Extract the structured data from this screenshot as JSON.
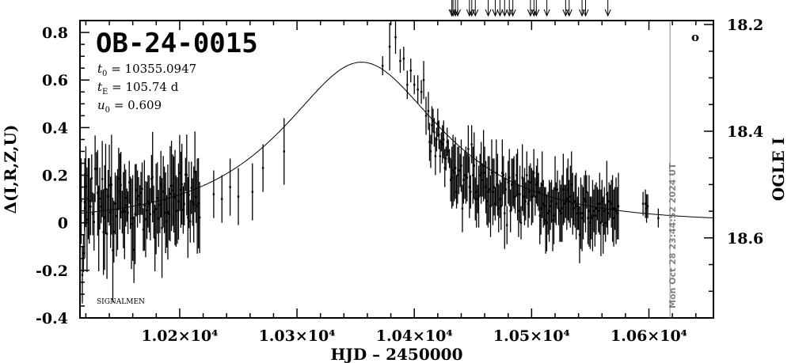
{
  "chart_data": {
    "type": "scatter",
    "title": "OB-24-0015",
    "xlabel": "HJD – 2450000",
    "ylabel": "Δ(I,R,Z,U)",
    "y2label": "OGLE I",
    "xlim": [
      10115,
      10655
    ],
    "ylim": [
      -0.4,
      0.85
    ],
    "y2lim": [
      18.2,
      18.75
    ],
    "x_ticks": [
      {
        "value": 10200,
        "label": "1.02×10⁴"
      },
      {
        "value": 10300,
        "label": "1.03×10⁴"
      },
      {
        "value": 10400,
        "label": "1.04×10⁴"
      },
      {
        "value": 10500,
        "label": "1.05×10⁴"
      },
      {
        "value": 10600,
        "label": "1.06×10⁴"
      }
    ],
    "y_ticks": [
      {
        "value": 0.8,
        "label": "0.8"
      },
      {
        "value": 0.6,
        "label": "0.6"
      },
      {
        "value": 0.4,
        "label": "0.4"
      },
      {
        "value": 0.2,
        "label": "0.2"
      },
      {
        "value": 0,
        "label": "0"
      },
      {
        "value": -0.2,
        "label": "-0.2"
      },
      {
        "value": -0.4,
        "label": "-0.4"
      }
    ],
    "y2_ticks": [
      {
        "value": 18.2,
        "label": "18.2"
      },
      {
        "value": 18.4,
        "label": "18.4"
      },
      {
        "value": 18.6,
        "label": "18.6"
      }
    ],
    "params": {
      "t0_name": "t",
      "t0_sub": "0",
      "t0_value": "= 10355.0947",
      "tE_name": "t",
      "tE_sub": "E",
      "tE_value": "= 105.74 d",
      "u0_name": "u",
      "u0_sub": "0",
      "u0_value": "= 0.609"
    },
    "model": {
      "t0": 10355.0947,
      "tE": 105.74,
      "u0": 0.609,
      "baseline_offset": 0.0
    },
    "survey_label": "SIGNALMEN",
    "timestamp": "Mon Oct 28 23:44:52 2024 UT",
    "marker": "o",
    "now_line_x": 10618,
    "arrow_epochs": [
      10432,
      10433,
      10435,
      10437,
      10447,
      10449,
      10452,
      10463,
      10469,
      10473,
      10477,
      10481,
      10484,
      10499,
      10502,
      10504,
      10513,
      10529,
      10532,
      10543,
      10546,
      10565
    ],
    "data_points": [
      [
        10115.2,
        0.083,
        0.19
      ],
      [
        10116.0,
        0.091,
        0.18
      ],
      [
        10117.0,
        -0.219,
        0.12
      ],
      [
        10118.0,
        -0.128,
        0.08
      ],
      [
        10118.9,
        0.087,
        0.12
      ],
      [
        10119.1,
        0.061,
        0.21
      ],
      [
        10120.0,
        0.152,
        0.17
      ],
      [
        10121.0,
        0.013,
        0.22
      ],
      [
        10122.1,
        0.101,
        0.17
      ],
      [
        10122.9,
        0.092,
        0.18
      ],
      [
        10124.0,
        0.068,
        0.12
      ],
      [
        10125.0,
        0.187,
        0.1
      ],
      [
        10125.9,
        0.037,
        0.09
      ],
      [
        10127.0,
        0.003,
        0.12
      ],
      [
        10127.9,
        0.227,
        0.14
      ],
      [
        10129.0,
        0.227,
        0.07
      ],
      [
        10130.1,
        0.126,
        0.18
      ],
      [
        10131.0,
        -0.024,
        0.18
      ],
      [
        10131.9,
        0.102,
        0.13
      ],
      [
        10133.1,
        0.068,
        0.07
      ],
      [
        10134.0,
        0.184,
        0.16
      ],
      [
        10135.0,
        -0.039,
        0.18
      ],
      [
        10136.0,
        0.022,
        0.22
      ],
      [
        10136.9,
        0.142,
        0.19
      ],
      [
        10138.0,
        -0.046,
        0.19
      ],
      [
        10139.0,
        0.112,
        0.11
      ],
      [
        10140.0,
        0.158,
        0.17
      ],
      [
        10141.1,
        0.044,
        0.15
      ],
      [
        10141.9,
        0.16,
        0.21
      ],
      [
        10143.0,
        -0.115,
        0.22
      ],
      [
        10143.9,
        -0.038,
        0.13
      ],
      [
        10145.0,
        0.081,
        0.13
      ],
      [
        10146.1,
        0.028,
        0.17
      ],
      [
        10147.1,
        0.056,
        0.17
      ],
      [
        10148.0,
        0.185,
        0.13
      ],
      [
        10149.0,
        0.132,
        0.16
      ],
      [
        10149.9,
        0.158,
        0.14
      ],
      [
        10151.0,
        0.045,
        0.09
      ],
      [
        10152.0,
        0.053,
        0.16
      ],
      [
        10153.0,
        0.047,
        0.2
      ],
      [
        10154.0,
        0.104,
        0.12
      ],
      [
        10155.0,
        0.074,
        0.07
      ],
      [
        10155.9,
        0.042,
        0.09
      ],
      [
        10157.0,
        0.17,
        0.09
      ],
      [
        10158.0,
        0.084,
        0.11
      ],
      [
        10158.9,
        -0.005,
        0.19
      ],
      [
        10160.0,
        0.02,
        0.18
      ],
      [
        10161.0,
        -0.113,
        0.14
      ],
      [
        10162.0,
        0.036,
        0.21
      ],
      [
        10163.0,
        0.137,
        0.11
      ],
      [
        10164.0,
        0.1,
        0.12
      ],
      [
        10165.0,
        0.112,
        0.08
      ],
      [
        10166.1,
        0.078,
        0.08
      ],
      [
        10167.0,
        0.124,
        0.09
      ],
      [
        10168.0,
        0.143,
        0.11
      ],
      [
        10169.0,
        -0.029,
        0.09
      ],
      [
        10169.9,
        0.073,
        0.19
      ],
      [
        10171.0,
        0.015,
        0.16
      ],
      [
        10172.1,
        0.052,
        0.12
      ],
      [
        10173.0,
        0.09,
        0.11
      ],
      [
        10174.0,
        0.079,
        0.12
      ],
      [
        10175.0,
        0.036,
        0.11
      ],
      [
        10176.0,
        0.185,
        0.1
      ],
      [
        10176.9,
        0.192,
        0.19
      ],
      [
        10177.9,
        0.046,
        0.11
      ],
      [
        10178.9,
        -0.064,
        0.14
      ],
      [
        10179.9,
        0.058,
        0.19
      ],
      [
        10181.0,
        0.104,
        0.15
      ],
      [
        10182.0,
        0.018,
        0.12
      ],
      [
        10183.1,
        0.076,
        0.12
      ],
      [
        10184.0,
        0.162,
        0.14
      ],
      [
        10184.9,
        -0.022,
        0.21
      ],
      [
        10186.0,
        0.131,
        0.15
      ],
      [
        10187.0,
        0.096,
        0.14
      ],
      [
        10188.0,
        0.042,
        0.17
      ],
      [
        10189.0,
        0.006,
        0.11
      ],
      [
        10189.9,
        0.045,
        0.2
      ],
      [
        10191.0,
        0.037,
        0.11
      ],
      [
        10191.9,
        0.122,
        0.2
      ],
      [
        10193.0,
        0.155,
        0.19
      ],
      [
        10194.1,
        0.137,
        0.15
      ],
      [
        10195.0,
        0.119,
        0.16
      ],
      [
        10196.0,
        0.106,
        0.2
      ],
      [
        10196.9,
        0.049,
        0.15
      ],
      [
        10198.0,
        0.051,
        0.14
      ],
      [
        10199.0,
        0.089,
        0.16
      ],
      [
        10200.0,
        0.209,
        0.16
      ],
      [
        10201.0,
        0.139,
        0.16
      ],
      [
        10201.9,
        0.162,
        0.17
      ],
      [
        10203.0,
        0.054,
        0.1
      ],
      [
        10203.9,
        0.079,
        0.09
      ],
      [
        10205.0,
        0.203,
        0.07
      ],
      [
        10206.0,
        0.201,
        0.17
      ],
      [
        10207.0,
        0.022,
        0.17
      ],
      [
        10207.9,
        0.117,
        0.14
      ],
      [
        10209.0,
        0.006,
        0.09
      ],
      [
        10210.0,
        0.147,
        0.11
      ],
      [
        10211.0,
        0.087,
        0.1
      ],
      [
        10212.0,
        0.077,
        0.16
      ],
      [
        10213.0,
        0.214,
        0.17
      ],
      [
        10214.0,
        0.109,
        0.11
      ],
      [
        10215.0,
        0.07,
        0.2
      ],
      [
        10216.0,
        0.082,
        0.19
      ],
      [
        10217.0,
        0.022,
        0.15
      ],
      [
        10229.0,
        0.12,
        0.1
      ],
      [
        10236.0,
        0.1,
        0.1
      ],
      [
        10243.0,
        0.15,
        0.12
      ],
      [
        10250.0,
        0.11,
        0.12
      ],
      [
        10262.0,
        0.13,
        0.12
      ],
      [
        10271.0,
        0.23,
        0.1
      ],
      [
        10289.0,
        0.3,
        0.14
      ],
      [
        10373.0,
        0.66,
        0.04
      ],
      [
        10379.0,
        0.74,
        0.1
      ],
      [
        10384.0,
        0.78,
        0.07
      ],
      [
        10388.0,
        0.68,
        0.05
      ],
      [
        10391.0,
        0.69,
        0.05
      ],
      [
        10394.0,
        0.58,
        0.06
      ],
      [
        10397.0,
        0.64,
        0.05
      ],
      [
        10400.0,
        0.58,
        0.04
      ],
      [
        10403.0,
        0.56,
        0.06
      ],
      [
        10406.0,
        0.55,
        0.05
      ],
      [
        10408.0,
        0.6,
        0.08
      ],
      [
        10410.0,
        0.45,
        0.08
      ],
      [
        10412.0,
        0.47,
        0.08
      ],
      [
        10413.0,
        0.34,
        0.08
      ],
      [
        10414.0,
        0.3,
        0.07
      ],
      [
        10415.0,
        0.41,
        0.08
      ],
      [
        10416.0,
        0.43,
        0.05
      ],
      [
        10417.0,
        0.38,
        0.06
      ],
      [
        10418.0,
        0.28,
        0.08
      ],
      [
        10419.0,
        0.35,
        0.05
      ],
      [
        10420.0,
        0.42,
        0.06
      ],
      [
        10421.0,
        0.37,
        0.06
      ],
      [
        10422.0,
        0.28,
        0.07
      ],
      [
        10423.0,
        0.34,
        0.04
      ],
      [
        10424.0,
        0.33,
        0.08
      ],
      [
        10425.0,
        0.35,
        0.08
      ],
      [
        10426.0,
        0.23,
        0.08
      ],
      [
        10427.0,
        0.27,
        0.05
      ],
      [
        10428.0,
        0.34,
        0.06
      ],
      [
        10429.0,
        0.3,
        0.05
      ],
      [
        10430.0,
        0.27,
        0.04
      ],
      [
        10431.0,
        0.18,
        0.09
      ],
      [
        10432.0,
        0.19,
        0.13
      ],
      [
        10433.0,
        0.22,
        0.15
      ],
      [
        10434.0,
        0.21,
        0.12
      ],
      [
        10435.0,
        0.23,
        0.13
      ],
      [
        10436.0,
        0.13,
        0.07
      ],
      [
        10436.9,
        0.2,
        0.12
      ],
      [
        10438.0,
        0.22,
        0.1
      ],
      [
        10439.1,
        0.22,
        0.07
      ],
      [
        10440.0,
        0.24,
        0.11
      ],
      [
        10441.0,
        0.06,
        0.1
      ],
      [
        10441.9,
        0.18,
        0.1
      ],
      [
        10443.0,
        0.2,
        0.1
      ],
      [
        10444.0,
        0.2,
        0.12
      ],
      [
        10445.0,
        0.19,
        0.1
      ],
      [
        10446.0,
        0.31,
        0.1
      ],
      [
        10447.0,
        0.15,
        0.13
      ],
      [
        10448.0,
        0.13,
        0.07
      ],
      [
        10448.9,
        0.33,
        0.08
      ],
      [
        10450.0,
        0.2,
        0.12
      ],
      [
        10451.0,
        0.24,
        0.14
      ],
      [
        10452.0,
        0.1,
        0.09
      ],
      [
        10453.0,
        0.13,
        0.15
      ],
      [
        10454.0,
        0.1,
        0.06
      ],
      [
        10454.9,
        0.11,
        0.13
      ],
      [
        10456.0,
        0.2,
        0.09
      ],
      [
        10457.0,
        0.21,
        0.13
      ],
      [
        10458.0,
        0.18,
        0.07
      ],
      [
        10459.0,
        0.24,
        0.15
      ],
      [
        10460.0,
        0.21,
        0.11
      ],
      [
        10461.0,
        0.15,
        0.11
      ],
      [
        10461.9,
        0.09,
        0.1
      ],
      [
        10462.9,
        0.13,
        0.15
      ],
      [
        10464.0,
        0.14,
        0.14
      ],
      [
        10465.0,
        0.07,
        0.13
      ],
      [
        10466.0,
        0.21,
        0.14
      ],
      [
        10467.0,
        0.13,
        0.14
      ],
      [
        10468.0,
        0.15,
        0.12
      ],
      [
        10469.0,
        0.08,
        0.07
      ],
      [
        10469.9,
        0.21,
        0.14
      ],
      [
        10471.0,
        0.16,
        0.13
      ],
      [
        10471.9,
        0.06,
        0.1
      ],
      [
        10473.0,
        0.1,
        0.08
      ],
      [
        10474.0,
        0.07,
        0.1
      ],
      [
        10475.0,
        0.21,
        0.14
      ],
      [
        10476.0,
        0.2,
        0.08
      ],
      [
        10477.0,
        0.04,
        0.15
      ],
      [
        10478.0,
        0.14,
        0.07
      ],
      [
        10479.0,
        -0.01,
        0.08
      ],
      [
        10480.0,
        0.17,
        0.09
      ],
      [
        10481.0,
        0.19,
        0.12
      ],
      [
        10482.0,
        0.05,
        0.09
      ],
      [
        10483.0,
        0.16,
        0.11
      ],
      [
        10484.1,
        0.17,
        0.1
      ],
      [
        10485.0,
        0.17,
        0.11
      ],
      [
        10486.0,
        0.11,
        0.07
      ],
      [
        10487.1,
        0.2,
        0.09
      ],
      [
        10488.0,
        0.16,
        0.15
      ],
      [
        10488.9,
        0.05,
        0.11
      ],
      [
        10490.0,
        0.12,
        0.12
      ],
      [
        10491.0,
        0.0,
        0.07
      ],
      [
        10492.1,
        0.19,
        0.14
      ],
      [
        10493.0,
        0.11,
        0.08
      ],
      [
        10494.0,
        0.11,
        0.12
      ],
      [
        10494.9,
        0.09,
        0.08
      ],
      [
        10495.9,
        0.2,
        0.1
      ],
      [
        10497.0,
        0.08,
        0.1
      ],
      [
        10497.9,
        0.13,
        0.11
      ],
      [
        10499.0,
        0.17,
        0.08
      ],
      [
        10500.0,
        0.11,
        0.12
      ],
      [
        10501.0,
        0.11,
        0.11
      ],
      [
        10501.9,
        0.21,
        0.1
      ],
      [
        10503.0,
        0.11,
        0.08
      ],
      [
        10504.1,
        0.16,
        0.08
      ],
      [
        10505.0,
        0.17,
        0.1
      ],
      [
        10505.9,
        0.13,
        0.08
      ],
      [
        10507.0,
        0.03,
        0.12
      ],
      [
        10508.0,
        0.06,
        0.11
      ],
      [
        10509.0,
        0.16,
        0.14
      ],
      [
        10510.0,
        0.08,
        0.1
      ],
      [
        10511.0,
        0.07,
        0.08
      ],
      [
        10512.0,
        0.01,
        0.14
      ],
      [
        10512.9,
        0.0,
        0.12
      ],
      [
        10514.0,
        0.04,
        0.09
      ],
      [
        10515.0,
        0.05,
        0.13
      ],
      [
        10516.0,
        0.07,
        0.1
      ],
      [
        10517.0,
        0.09,
        0.09
      ],
      [
        10518.0,
        0.01,
        0.13
      ],
      [
        10519.0,
        0.03,
        0.12
      ],
      [
        10520.0,
        0.14,
        0.14
      ],
      [
        10520.9,
        0.08,
        0.09
      ],
      [
        10522.0,
        0.14,
        0.08
      ],
      [
        10523.0,
        0.06,
        0.07
      ],
      [
        10524.0,
        0.05,
        0.13
      ],
      [
        10525.0,
        0.04,
        0.12
      ],
      [
        10526.0,
        0.06,
        0.14
      ],
      [
        10527.0,
        0.14,
        0.15
      ],
      [
        10528.0,
        0.08,
        0.08
      ],
      [
        10529.0,
        0.09,
        0.07
      ],
      [
        10530.0,
        0.1,
        0.13
      ],
      [
        10531.0,
        0.14,
        0.13
      ],
      [
        10531.9,
        0.09,
        0.09
      ],
      [
        10533.0,
        0.11,
        0.13
      ],
      [
        10534.0,
        0.16,
        0.14
      ],
      [
        10535.0,
        0.08,
        0.13
      ],
      [
        10535.9,
        0.06,
        0.07
      ],
      [
        10537.0,
        0.09,
        0.11
      ],
      [
        10538.0,
        0.07,
        0.14
      ],
      [
        10539.1,
        0.04,
        0.07
      ],
      [
        10540.0,
        0.06,
        0.09
      ],
      [
        10540.9,
        -0.05,
        0.12
      ],
      [
        10541.9,
        0.04,
        0.15
      ],
      [
        10543.0,
        0.02,
        0.14
      ],
      [
        10544.0,
        0.04,
        0.11
      ],
      [
        10544.9,
        0.1,
        0.1
      ],
      [
        10546.0,
        0.09,
        0.13
      ],
      [
        10546.9,
        0.13,
        0.07
      ],
      [
        10548.0,
        0.02,
        0.11
      ],
      [
        10549.0,
        0.05,
        0.15
      ],
      [
        10550.0,
        0.0,
        0.11
      ],
      [
        10550.9,
        0.02,
        0.09
      ],
      [
        10552.0,
        0.03,
        0.15
      ],
      [
        10553.0,
        0.05,
        0.09
      ],
      [
        10554.0,
        0.03,
        0.13
      ],
      [
        10555.1,
        0.06,
        0.11
      ],
      [
        10556.0,
        0.08,
        0.07
      ],
      [
        10557.0,
        0.05,
        0.09
      ],
      [
        10558.0,
        0.08,
        0.13
      ],
      [
        10559.1,
        0.0,
        0.14
      ],
      [
        10560.0,
        0.09,
        0.09
      ],
      [
        10561.0,
        -0.01,
        0.12
      ],
      [
        10562.0,
        0.05,
        0.1
      ],
      [
        10563.0,
        0.0,
        0.08
      ],
      [
        10564.1,
        0.12,
        0.14
      ],
      [
        10564.9,
        0.04,
        0.09
      ],
      [
        10566.0,
        0.09,
        0.08
      ],
      [
        10567.0,
        0.09,
        0.07
      ],
      [
        10568.0,
        0.08,
        0.1
      ],
      [
        10569.0,
        0.06,
        0.14
      ],
      [
        10570.0,
        0.02,
        0.12
      ],
      [
        10571.0,
        0.06,
        0.09
      ],
      [
        10572.0,
        0.05,
        0.14
      ],
      [
        10573.0,
        0.04,
        0.11
      ],
      [
        10574.0,
        0.07,
        0.14
      ],
      [
        10595.0,
        0.08,
        0.05
      ],
      [
        10597.0,
        0.08,
        0.06
      ],
      [
        10598.0,
        0.06,
        0.06
      ],
      [
        10599.0,
        0.07,
        0.05
      ],
      [
        10608.0,
        0.02,
        0.04
      ]
    ]
  }
}
